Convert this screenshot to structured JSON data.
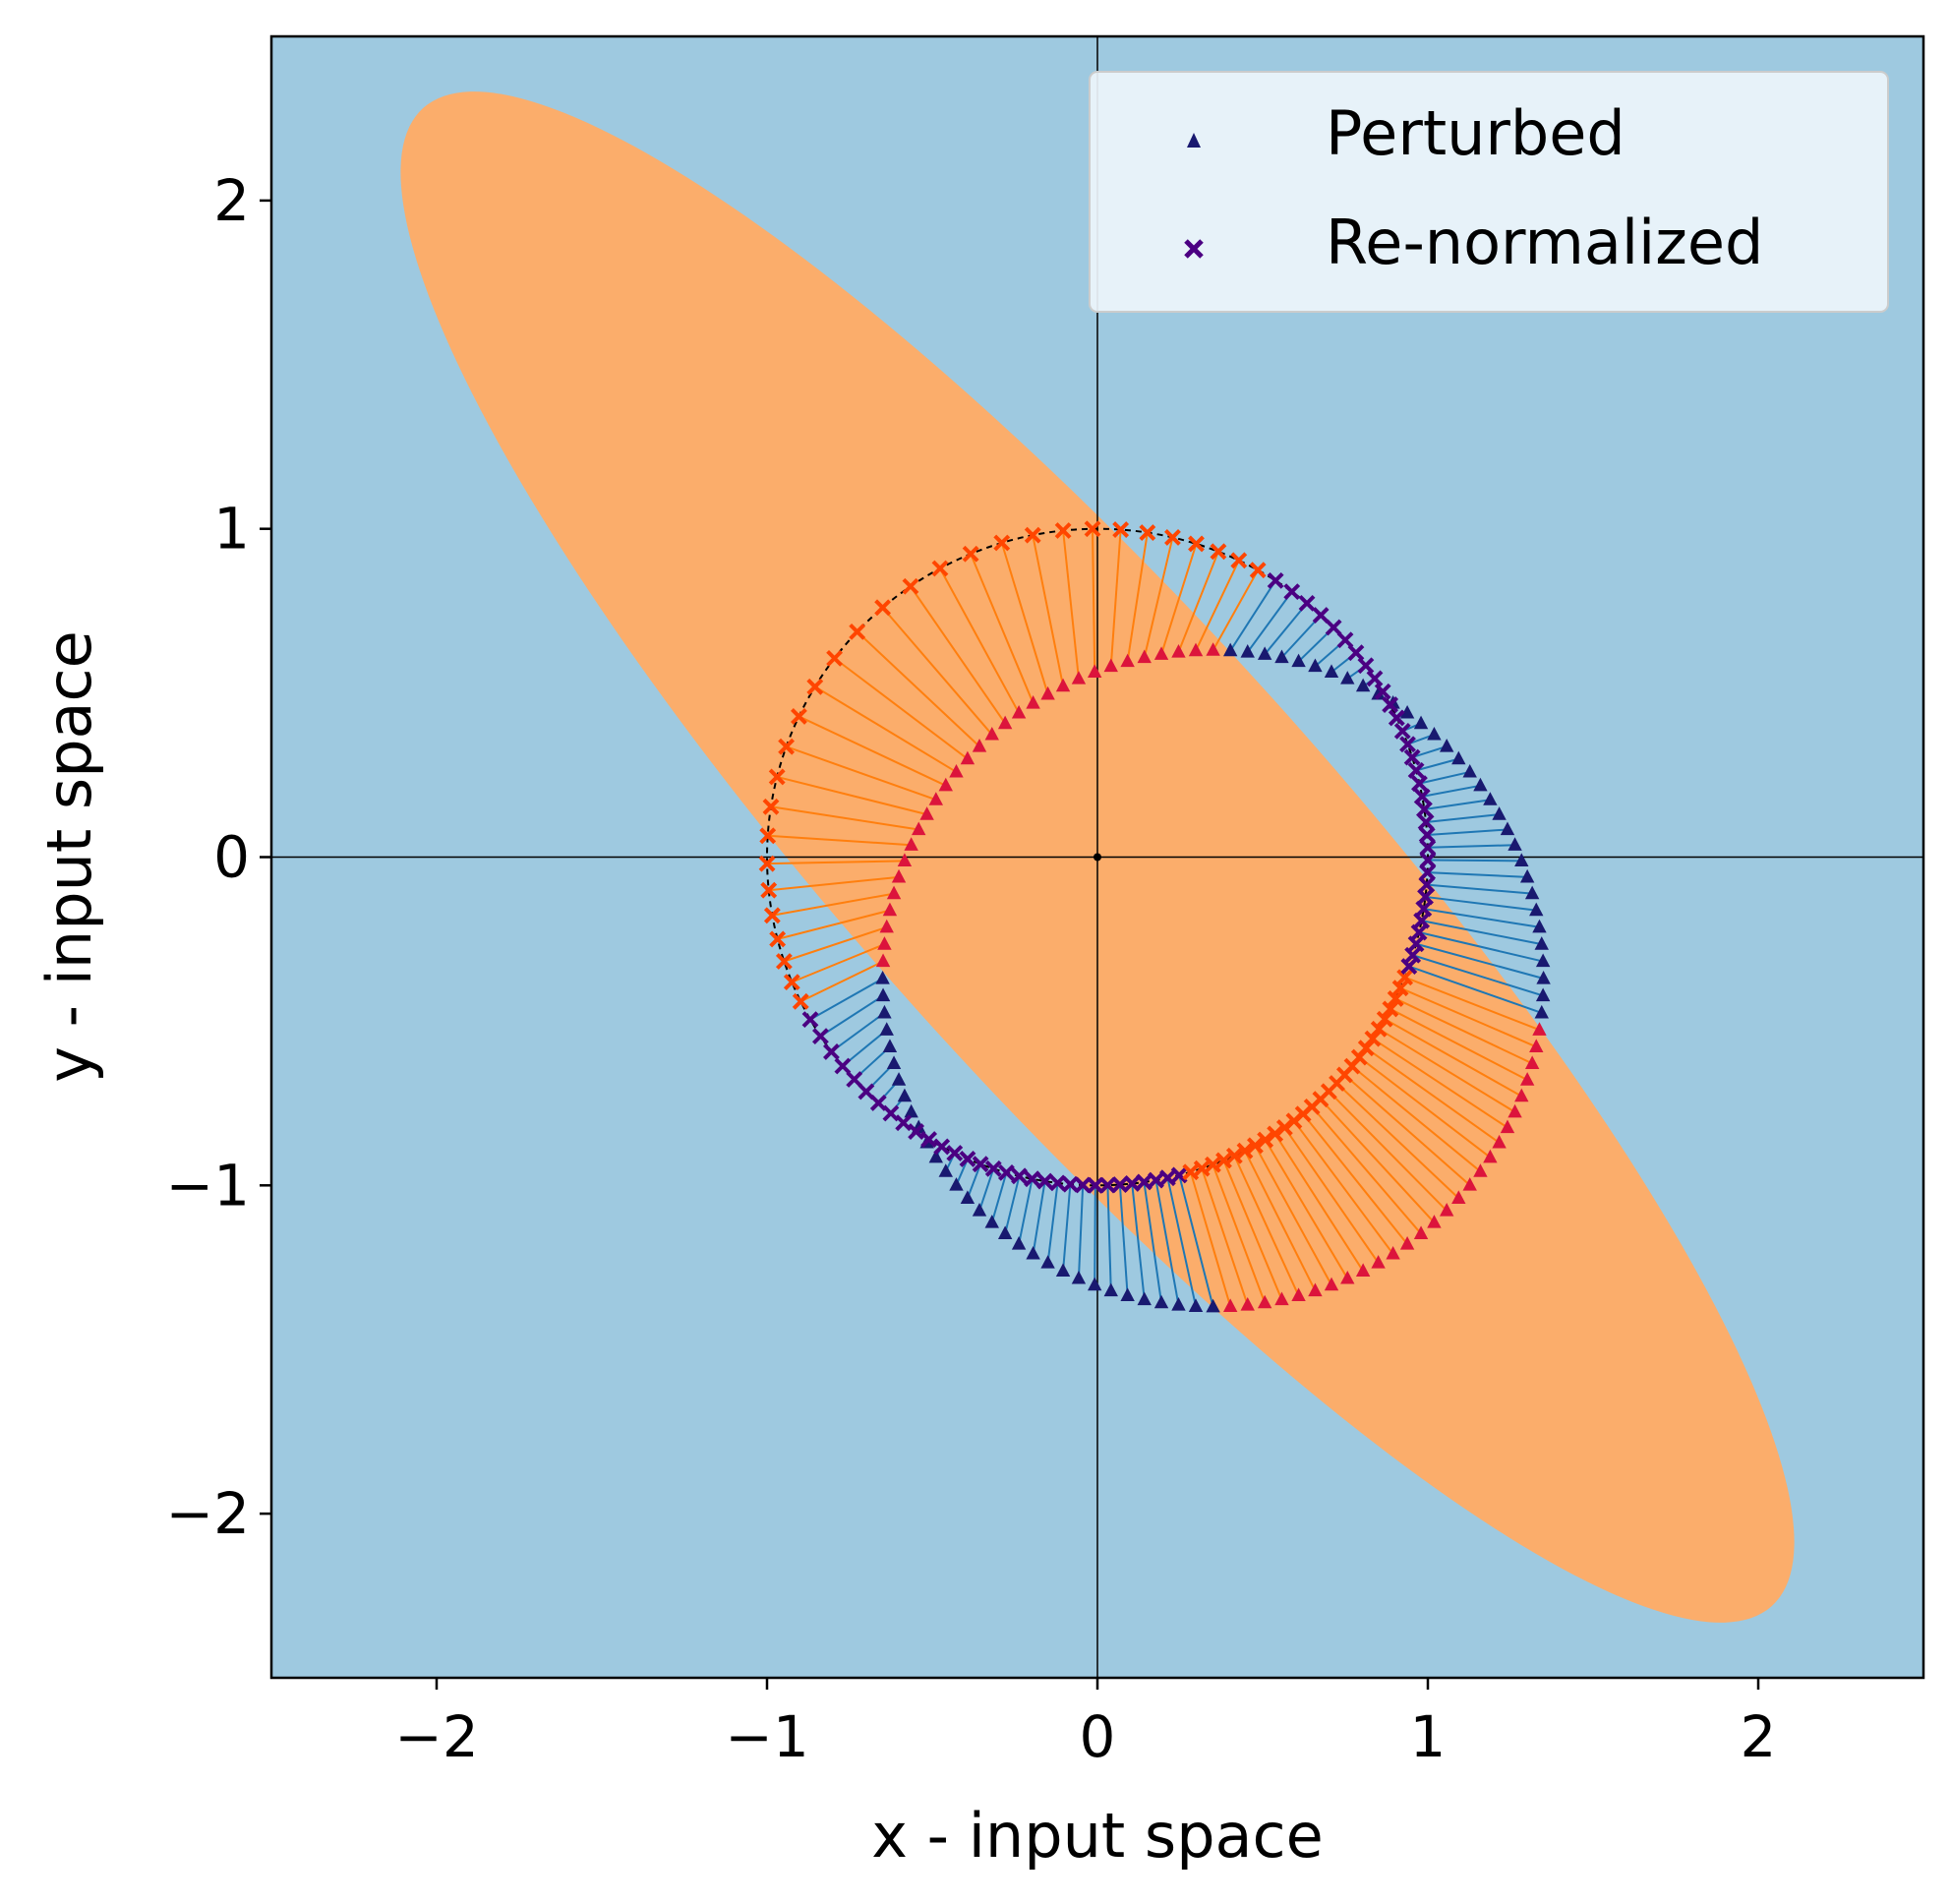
{
  "chart_data": {
    "type": "scatter",
    "xlabel": "x - input space",
    "ylabel": "y - input space",
    "xlim": [
      -2.5,
      2.5
    ],
    "ylim": [
      -2.5,
      2.5
    ],
    "xticks": [
      -2,
      -1,
      0,
      1,
      2
    ],
    "yticks": [
      -2,
      -1,
      0,
      1,
      2
    ],
    "xtick_labels": [
      "−2",
      "−1",
      "0",
      "1",
      "2"
    ],
    "ytick_labels": [
      "−2",
      "−1",
      "0",
      "1",
      "2"
    ],
    "grid": false,
    "legend_position": "top-right",
    "colors": {
      "background_region": "#9ec9e0",
      "ellipse_region": "#fbad6b",
      "perturbed_outside": "#191970",
      "renormalized_outside": "#4b0082",
      "perturbed_inside": "#dc143c",
      "renormalized_inside": "#ff4500",
      "displacement_outside": "#1f77b4",
      "displacement_inside": "#ff7f0e"
    },
    "ellipse_region": {
      "center": [
        0,
        0
      ],
      "semi_major_axis": 3.05,
      "semi_minor_axis": 0.72,
      "major_axis_angle_deg": -48
    },
    "unit_circle": {
      "center": [
        0,
        0
      ],
      "radius": 1,
      "style": "dashed"
    },
    "perturbed_circle": {
      "center": [
        0.35,
        -0.37
      ],
      "radius": 1.0,
      "num_points": 120
    },
    "series": [
      {
        "name": "Perturbed",
        "marker": "triangle",
        "color": "#191970"
      },
      {
        "name": "Re-normalized",
        "marker": "x",
        "color": "#4b0082"
      }
    ]
  }
}
